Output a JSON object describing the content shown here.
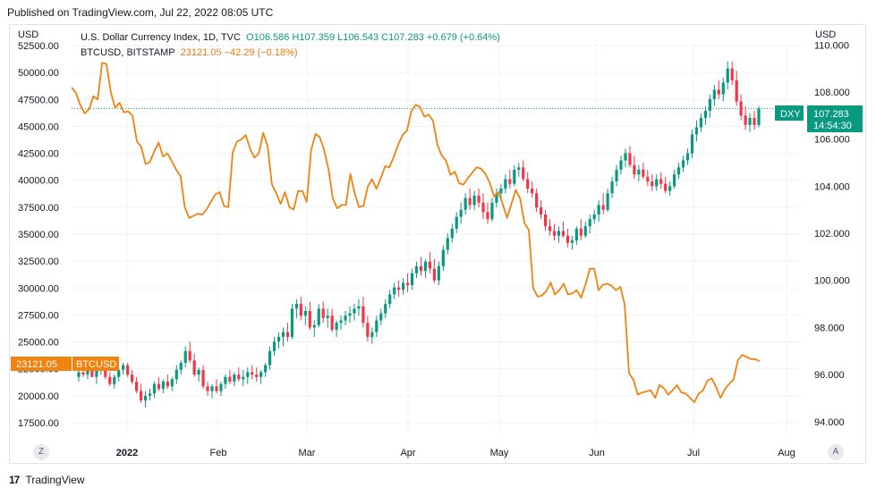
{
  "header": {
    "published": "Published on TradingView.com, Jul 22, 2022 08:05 UTC"
  },
  "axes": {
    "left_currency": "USD",
    "right_currency": "USD"
  },
  "legend": {
    "dxy_name": "U.S. Dollar Currency Index, 1D, TVC",
    "dxy_ohlc": "O106.586 H107.359 L106.543 C107.283 +0.679 (+0.64%)",
    "btc_name": "BTCUSD, BITSTAMP",
    "btc_value": "23121.05 −42.29 (−0.18%)"
  },
  "badges": {
    "btc_price": "23121.05",
    "btc_label": "BTCUSD",
    "dxy_label": "DXY",
    "dxy_price": "107.283",
    "dxy_countdown": "14:54:30"
  },
  "buttons": {
    "z": "Z",
    "a": "A"
  },
  "footer": {
    "brand": "TradingView",
    "logo": "17"
  },
  "colors": {
    "btc": "#f0820f",
    "up": "#089981",
    "down": "#f23645",
    "dxy_badge": "#089981",
    "btc_badge": "#f0820f"
  },
  "chart_data": {
    "type": "line",
    "x_labels": [
      "2022",
      "Feb",
      "Mar",
      "Apr",
      "May",
      "Jun",
      "Jul",
      "Aug"
    ],
    "left_axis": {
      "ticks": [
        "17500.00",
        "20000.00",
        "22500.00",
        "25000.00",
        "27500.00",
        "30000.00",
        "32500.00",
        "35000.00",
        "37500.00",
        "40000.00",
        "42500.00",
        "45000.00",
        "47500.00",
        "50000.00",
        "52500.00"
      ],
      "ylim": [
        16500,
        53000
      ]
    },
    "right_axis": {
      "ticks": [
        "94.000",
        "96.000",
        "98.000",
        "100.000",
        "102.000",
        "104.000",
        "106.000",
        "108.000",
        "110.000"
      ],
      "ylim": [
        93.5,
        110.2
      ]
    },
    "btc_series": {
      "name": "BTCUSD",
      "values": [
        48600,
        48100,
        47000,
        46200,
        46600,
        47800,
        47500,
        50900,
        50800,
        48200,
        46700,
        47200,
        46300,
        46400,
        46000,
        43600,
        43100,
        41500,
        41700,
        42700,
        43500,
        42200,
        42500,
        41800,
        41000,
        40400,
        37500,
        36500,
        36700,
        36900,
        36800,
        37300,
        38000,
        38700,
        38900,
        37600,
        37500,
        42600,
        43600,
        43800,
        44200,
        42900,
        42100,
        42500,
        44400,
        43200,
        39600,
        38800,
        37800,
        38900,
        37500,
        37300,
        39000,
        39000,
        38000,
        42800,
        44300,
        44000,
        42800,
        41000,
        38300,
        37400,
        37700,
        37700,
        40600,
        38800,
        37500,
        37600,
        39400,
        40100,
        39200,
        40200,
        41300,
        41200,
        42200,
        43300,
        44200,
        44600,
        46400,
        47000,
        46800,
        45900,
        46100,
        45500,
        43300,
        42300,
        41800,
        40500,
        40800,
        39700,
        39600,
        40200,
        40700,
        41200,
        41100,
        40600,
        39800,
        38500,
        38900,
        37800,
        36500,
        37800,
        39100,
        38300,
        36000,
        35400,
        30000,
        29200,
        29300,
        29700,
        30500,
        29400,
        29800,
        30400,
        29400,
        29500,
        29800,
        29100,
        30300,
        31800,
        31800,
        29800,
        30300,
        30400,
        30200,
        29800,
        30100,
        28500,
        22100,
        21500,
        20100,
        20300,
        20400,
        20500,
        19800,
        21000,
        20700,
        20100,
        20500,
        21000,
        20300,
        20200,
        19800,
        19400,
        20200,
        20500,
        21400,
        21600,
        20800,
        19800,
        20600,
        21100,
        21500,
        23300,
        23800,
        23600,
        23400,
        23400,
        23200
      ]
    },
    "dxy_candles": {
      "name": "DXY",
      "ohlc": [
        [
          95.9,
          96.3,
          95.7,
          96.1
        ],
        [
          96.1,
          96.4,
          95.9,
          96.0
        ],
        [
          96.0,
          96.3,
          95.8,
          96.2
        ],
        [
          96.2,
          96.5,
          95.9,
          95.9
        ],
        [
          95.9,
          96.3,
          95.6,
          96.2
        ],
        [
          96.2,
          96.5,
          96.0,
          96.3
        ],
        [
          96.3,
          96.4,
          95.8,
          95.9
        ],
        [
          95.9,
          96.1,
          95.5,
          95.6
        ],
        [
          95.6,
          96.0,
          95.4,
          95.9
        ],
        [
          95.9,
          96.3,
          95.7,
          96.2
        ],
        [
          96.2,
          96.5,
          96.0,
          96.4
        ],
        [
          96.4,
          96.5,
          95.9,
          96.0
        ],
        [
          96.0,
          96.2,
          95.6,
          95.7
        ],
        [
          95.7,
          95.9,
          95.2,
          95.3
        ],
        [
          95.3,
          95.6,
          94.8,
          94.9
        ],
        [
          94.9,
          95.3,
          94.6,
          95.1
        ],
        [
          95.1,
          95.4,
          94.9,
          95.2
        ],
        [
          95.2,
          95.7,
          95.0,
          95.6
        ],
        [
          95.6,
          95.9,
          95.3,
          95.4
        ],
        [
          95.4,
          95.8,
          95.2,
          95.7
        ],
        [
          95.7,
          96.0,
          95.4,
          95.5
        ],
        [
          95.5,
          95.9,
          95.3,
          95.8
        ],
        [
          95.8,
          96.4,
          95.6,
          96.2
        ],
        [
          96.2,
          96.6,
          96.0,
          96.5
        ],
        [
          96.5,
          97.2,
          96.3,
          97.0
        ],
        [
          97.0,
          97.4,
          96.5,
          96.6
        ],
        [
          96.6,
          96.9,
          95.9,
          96.0
        ],
        [
          96.0,
          96.3,
          95.7,
          96.2
        ],
        [
          96.2,
          96.4,
          95.4,
          95.5
        ],
        [
          95.5,
          95.7,
          95.1,
          95.3
        ],
        [
          95.3,
          95.6,
          95.0,
          95.5
        ],
        [
          95.5,
          95.8,
          95.2,
          95.3
        ],
        [
          95.3,
          95.7,
          95.1,
          95.6
        ],
        [
          95.6,
          96.0,
          95.4,
          95.9
        ],
        [
          95.9,
          96.2,
          95.6,
          95.7
        ],
        [
          95.7,
          96.1,
          95.5,
          96.0
        ],
        [
          96.0,
          96.3,
          95.7,
          95.8
        ],
        [
          95.8,
          96.2,
          95.5,
          95.9
        ],
        [
          95.9,
          96.3,
          95.6,
          96.1
        ],
        [
          96.1,
          96.4,
          95.8,
          96.0
        ],
        [
          96.0,
          96.3,
          95.7,
          95.9
        ],
        [
          95.9,
          96.2,
          95.6,
          96.1
        ],
        [
          96.1,
          96.5,
          95.9,
          96.4
        ],
        [
          96.4,
          97.2,
          96.2,
          97.0
        ],
        [
          97.0,
          97.6,
          96.8,
          97.4
        ],
        [
          97.4,
          97.8,
          97.1,
          97.6
        ],
        [
          97.6,
          98.0,
          97.2,
          97.8
        ],
        [
          97.8,
          98.2,
          97.4,
          97.6
        ],
        [
          97.6,
          99.0,
          97.5,
          98.8
        ],
        [
          98.8,
          99.2,
          98.4,
          99.0
        ],
        [
          99.0,
          99.3,
          98.3,
          98.5
        ],
        [
          98.5,
          98.9,
          98.1,
          98.7
        ],
        [
          98.7,
          99.1,
          97.9,
          98.0
        ],
        [
          98.0,
          98.3,
          97.6,
          98.1
        ],
        [
          98.1,
          99.0,
          98.0,
          98.8
        ],
        [
          98.8,
          99.1,
          98.2,
          98.4
        ],
        [
          98.4,
          98.8,
          98.0,
          98.5
        ],
        [
          98.5,
          98.8,
          97.8,
          97.9
        ],
        [
          97.9,
          98.3,
          97.6,
          98.2
        ],
        [
          98.2,
          98.5,
          97.9,
          98.3
        ],
        [
          98.3,
          98.7,
          98.1,
          98.5
        ],
        [
          98.5,
          98.9,
          98.2,
          98.6
        ],
        [
          98.6,
          99.0,
          98.3,
          98.8
        ],
        [
          98.8,
          99.2,
          98.5,
          98.9
        ],
        [
          98.9,
          99.3,
          98.0,
          98.2
        ],
        [
          98.2,
          98.5,
          97.4,
          97.6
        ],
        [
          97.6,
          98.0,
          97.3,
          97.8
        ],
        [
          97.8,
          98.5,
          97.6,
          98.3
        ],
        [
          98.3,
          98.8,
          98.1,
          98.6
        ],
        [
          98.6,
          99.2,
          98.4,
          99.0
        ],
        [
          99.0,
          99.6,
          98.8,
          99.4
        ],
        [
          99.4,
          99.9,
          99.2,
          99.7
        ],
        [
          99.7,
          100.0,
          99.3,
          99.6
        ],
        [
          99.6,
          100.1,
          99.4,
          99.9
        ],
        [
          99.9,
          100.3,
          99.5,
          99.8
        ],
        [
          99.8,
          100.5,
          99.6,
          100.3
        ],
        [
          100.3,
          100.8,
          100.1,
          100.6
        ],
        [
          100.6,
          101.0,
          100.2,
          100.4
        ],
        [
          100.4,
          100.9,
          100.1,
          100.8
        ],
        [
          100.8,
          101.2,
          100.3,
          100.5
        ],
        [
          100.5,
          100.9,
          99.9,
          100.0
        ],
        [
          100.0,
          100.8,
          99.8,
          100.6
        ],
        [
          100.6,
          101.5,
          100.4,
          101.3
        ],
        [
          101.3,
          102.0,
          101.1,
          101.8
        ],
        [
          101.8,
          102.4,
          101.6,
          102.2
        ],
        [
          102.2,
          102.9,
          102.0,
          102.7
        ],
        [
          102.7,
          103.3,
          102.4,
          103.0
        ],
        [
          103.0,
          103.7,
          102.8,
          103.5
        ],
        [
          103.5,
          103.9,
          103.0,
          103.2
        ],
        [
          103.2,
          103.8,
          103.0,
          103.6
        ],
        [
          103.6,
          103.9,
          103.1,
          103.3
        ],
        [
          103.3,
          103.7,
          102.6,
          102.9
        ],
        [
          102.9,
          103.3,
          102.4,
          102.6
        ],
        [
          102.6,
          103.5,
          102.5,
          103.3
        ],
        [
          103.3,
          103.9,
          103.1,
          103.7
        ],
        [
          103.7,
          104.1,
          103.4,
          103.9
        ],
        [
          103.9,
          104.5,
          103.7,
          104.3
        ],
        [
          104.3,
          104.7,
          103.9,
          104.1
        ],
        [
          104.1,
          104.9,
          104.0,
          104.7
        ],
        [
          104.7,
          105.0,
          104.4,
          104.8
        ],
        [
          104.8,
          105.1,
          104.2,
          104.3
        ],
        [
          104.3,
          104.6,
          103.7,
          103.9
        ],
        [
          103.9,
          104.2,
          103.5,
          103.7
        ],
        [
          103.7,
          103.9,
          102.9,
          103.1
        ],
        [
          103.1,
          103.4,
          102.6,
          102.8
        ],
        [
          102.8,
          103.0,
          102.1,
          102.3
        ],
        [
          102.3,
          102.6,
          101.9,
          102.1
        ],
        [
          102.1,
          102.4,
          101.7,
          101.9
        ],
        [
          101.9,
          102.3,
          101.6,
          102.1
        ],
        [
          102.1,
          102.5,
          101.8,
          101.9
        ],
        [
          101.9,
          102.2,
          101.4,
          101.6
        ],
        [
          101.6,
          101.9,
          101.3,
          101.7
        ],
        [
          101.7,
          102.3,
          101.5,
          102.2
        ],
        [
          102.2,
          102.6,
          101.7,
          101.9
        ],
        [
          101.9,
          102.5,
          101.8,
          102.3
        ],
        [
          102.3,
          102.8,
          102.0,
          102.6
        ],
        [
          102.6,
          103.0,
          102.4,
          102.8
        ],
        [
          102.8,
          103.4,
          102.5,
          103.2
        ],
        [
          103.2,
          103.7,
          102.8,
          103.0
        ],
        [
          103.0,
          103.9,
          102.9,
          103.7
        ],
        [
          103.7,
          104.4,
          103.5,
          104.2
        ],
        [
          104.2,
          104.9,
          104.0,
          104.7
        ],
        [
          104.7,
          105.3,
          104.5,
          105.1
        ],
        [
          105.1,
          105.6,
          104.8,
          105.4
        ],
        [
          105.4,
          105.7,
          104.8,
          104.9
        ],
        [
          104.9,
          105.3,
          104.3,
          104.5
        ],
        [
          104.5,
          104.9,
          104.2,
          104.7
        ],
        [
          104.7,
          105.0,
          104.3,
          104.4
        ],
        [
          104.4,
          104.7,
          104.0,
          104.2
        ],
        [
          104.2,
          104.5,
          103.8,
          104.0
        ],
        [
          104.0,
          104.5,
          103.8,
          104.3
        ],
        [
          104.3,
          104.6,
          103.9,
          104.1
        ],
        [
          104.1,
          104.4,
          103.7,
          103.8
        ],
        [
          103.8,
          104.2,
          103.6,
          104.0
        ],
        [
          104.0,
          104.7,
          103.9,
          104.5
        ],
        [
          104.5,
          105.0,
          104.3,
          104.8
        ],
        [
          104.8,
          105.3,
          104.6,
          105.1
        ],
        [
          105.1,
          105.6,
          104.9,
          105.4
        ],
        [
          105.4,
          106.4,
          105.2,
          106.2
        ],
        [
          106.2,
          106.8,
          105.9,
          106.5
        ],
        [
          106.5,
          107.1,
          106.3,
          106.9
        ],
        [
          106.9,
          107.4,
          106.6,
          107.2
        ],
        [
          107.2,
          107.9,
          106.9,
          107.7
        ],
        [
          107.7,
          108.3,
          107.4,
          108.1
        ],
        [
          108.1,
          108.5,
          107.7,
          107.9
        ],
        [
          107.9,
          108.6,
          107.6,
          108.4
        ],
        [
          108.4,
          109.3,
          108.1,
          109.0
        ],
        [
          109.0,
          109.3,
          108.3,
          108.5
        ],
        [
          108.5,
          108.9,
          107.4,
          107.6
        ],
        [
          107.6,
          107.9,
          106.8,
          107.0
        ],
        [
          107.0,
          107.4,
          106.4,
          106.6
        ],
        [
          106.6,
          107.1,
          106.3,
          106.9
        ],
        [
          106.9,
          107.2,
          106.4,
          106.6
        ],
        [
          106.6,
          107.4,
          106.5,
          107.3
        ]
      ]
    }
  }
}
